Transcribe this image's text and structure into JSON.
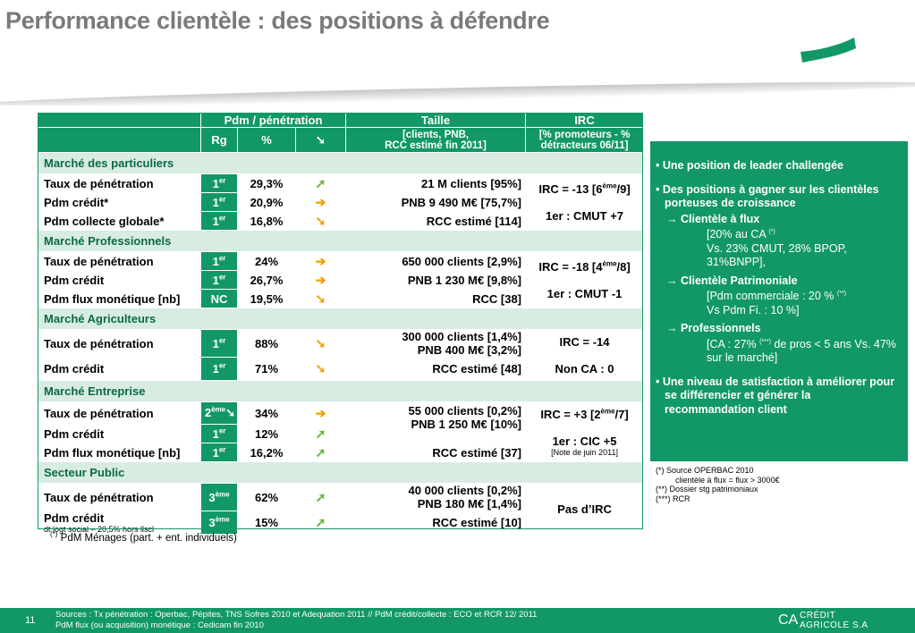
{
  "title": "Performance clientèle : des positions à défendre",
  "table": {
    "header1": {
      "pdm": "Pdm  / pénétration",
      "taille": "Taille",
      "irc": "IRC"
    },
    "header2": {
      "rg": "Rg",
      "pct": "%",
      "arrow": "➘",
      "taille_line1": "[clients, PNB,",
      "taille_line2": "RCC estimé fin 2011]",
      "irc_line1": "[% promoteurs - %",
      "irc_line2": "détracteurs  06/11]"
    },
    "sections": {
      "particuliers": "Marché des particuliers",
      "professionnels": "Marché Professionnels",
      "agriculteurs": "Marché Agriculteurs",
      "entreprise": "Marché Entreprise",
      "public": "Secteur Public"
    },
    "part": {
      "r1": {
        "label": "Taux de pénétration",
        "rg": "1",
        "sup": "er",
        "pct": "29,3%",
        "taille": "21 M clients [95%]"
      },
      "r2": {
        "label": "Pdm crédit*",
        "rg": "1",
        "sup": "er",
        "pct": "20,9%",
        "taille": "PNB 9 490 M€ [75,7%]"
      },
      "r3": {
        "label": "Pdm collecte globale*",
        "rg": "1",
        "sup": "er",
        "pct": "16,8%",
        "taille": "RCC estimé [114]"
      },
      "irc1": "IRC = -13 [6",
      "irc1_sup": "ème",
      "irc1_end": "/9]",
      "irc2": "1er : CMUT +7"
    },
    "pro": {
      "r1": {
        "label": "Taux de pénétration",
        "rg": "1",
        "sup": "er",
        "pct": "24%",
        "taille": "650 000 clients [2,9%]"
      },
      "r2": {
        "label": "Pdm crédit",
        "rg": "1",
        "sup": "er",
        "pct": "26,7%",
        "taille": "PNB 1 230 M€ [9,8%]"
      },
      "r3": {
        "label": "Pdm flux monétique [nb]",
        "rg": "NC",
        "pct": "19,5%",
        "taille": "RCC [38]"
      },
      "irc1": "IRC = -18 [4",
      "irc1_sup": "ème",
      "irc1_end": "/8]",
      "irc2": "1er : CMUT -1"
    },
    "agri": {
      "r1": {
        "label": "Taux de pénétration",
        "rg": "1",
        "sup": "er",
        "pct": "88%",
        "taille1": "300 000 clients [1,4%]",
        "taille2": "PNB 400 M€ [3,2%]"
      },
      "r2": {
        "label": "Pdm crédit",
        "rg": "1",
        "sup": "er",
        "pct": "71%",
        "taille": "RCC estimé [48]"
      },
      "irc1": "IRC = -14",
      "irc2": "Non CA : 0"
    },
    "ent": {
      "r1": {
        "label": "Taux de pénétration",
        "rg": "2",
        "sup": "ème",
        "pct": "34%",
        "taille1": "55 000 clients [0,2%]",
        "taille2": "PNB 1 250 M€ [10%]"
      },
      "r2": {
        "label": "Pdm crédit",
        "rg": "1",
        "sup": "er",
        "pct": "12%"
      },
      "r3": {
        "label": "Pdm flux monétique [nb]",
        "rg": "1",
        "sup": "er",
        "pct": "16,2%",
        "taille": "RCC estimé [37]"
      },
      "irc1": "IRC = +3 [2",
      "irc1_sup": "ème",
      "irc1_end": "/7]",
      "irc2": "1er : CIC +5",
      "note": "[Note de juin 2011]"
    },
    "pub": {
      "r1": {
        "label": "Taux de pénétration",
        "rg": "3",
        "sup": "ème",
        "pct": "62%",
        "taille1": "40 000 clients [0,2%]",
        "taille2": "PNB 180 M€ [1,4%]"
      },
      "r2": {
        "label": "Pdm crédit",
        "sublabel": "dt logt social – 20,5% hors llscl",
        "rg": "3",
        "sup": "ème",
        "pct": "15%",
        "taille": "RCC estimé [10]"
      },
      "irc": "Pas d’IRC"
    }
  },
  "footnote_left": {
    "mark": "(*)",
    "text": " PdM Ménages (part. + ent. individuels)"
  },
  "panel": {
    "b1": "• Une position de leader challengée",
    "b2": "• Des positions à gagner sur les clientèles porteuses de croissance",
    "s1": "→ Clientèle à flux",
    "d1a": "[20% au CA ",
    "d1a_mark": "(*)",
    "d1b": "Vs. 23% CMUT, 28% BPOP, 31%BNPP],",
    "s2": "→ Clientèle Patrimoniale",
    "d2a": "[Pdm commerciale : 20 % ",
    "d2a_mark": "(**)",
    "d2b": "Vs Pdm Fi. : 10 %]",
    "s3": "→  Professionnels",
    "d3a": "[CA : 27% ",
    "d3a_mark": "(***)",
    "d3b": " de pros < 5 ans Vs. 47% sur le marché]",
    "b3": "• Une niveau de satisfaction à améliorer pour se différencier et générer la recommandation client"
  },
  "notes_right": {
    "n1": "(*)   Source OPERBAC 2010",
    "n1b": "clientèle à flux = flux > 3000€",
    "n2": "(**)  Dossier stg patrimoniaux",
    "n3": "(***) RCR"
  },
  "footer": {
    "page": "11",
    "src1": "Sources :  Tx pénétration : Operbac, Pépites, TNS Sofres 2010 et  Adequation 2011 //  PdM crédit/collecte : ECO et RCR 12/ 2011",
    "src2": "PdM flux (ou acquisition) monétique : Cedicam fin 2010",
    "brand1": "CRÉDIT",
    "brand2": "AGRICOLE S.A",
    "brand_icon": "CA"
  },
  "colors": {
    "green": "#129866",
    "light_green": "#d8ece2",
    "arrow_up": "#6ab33e",
    "arrow_side": "#f0a000"
  }
}
